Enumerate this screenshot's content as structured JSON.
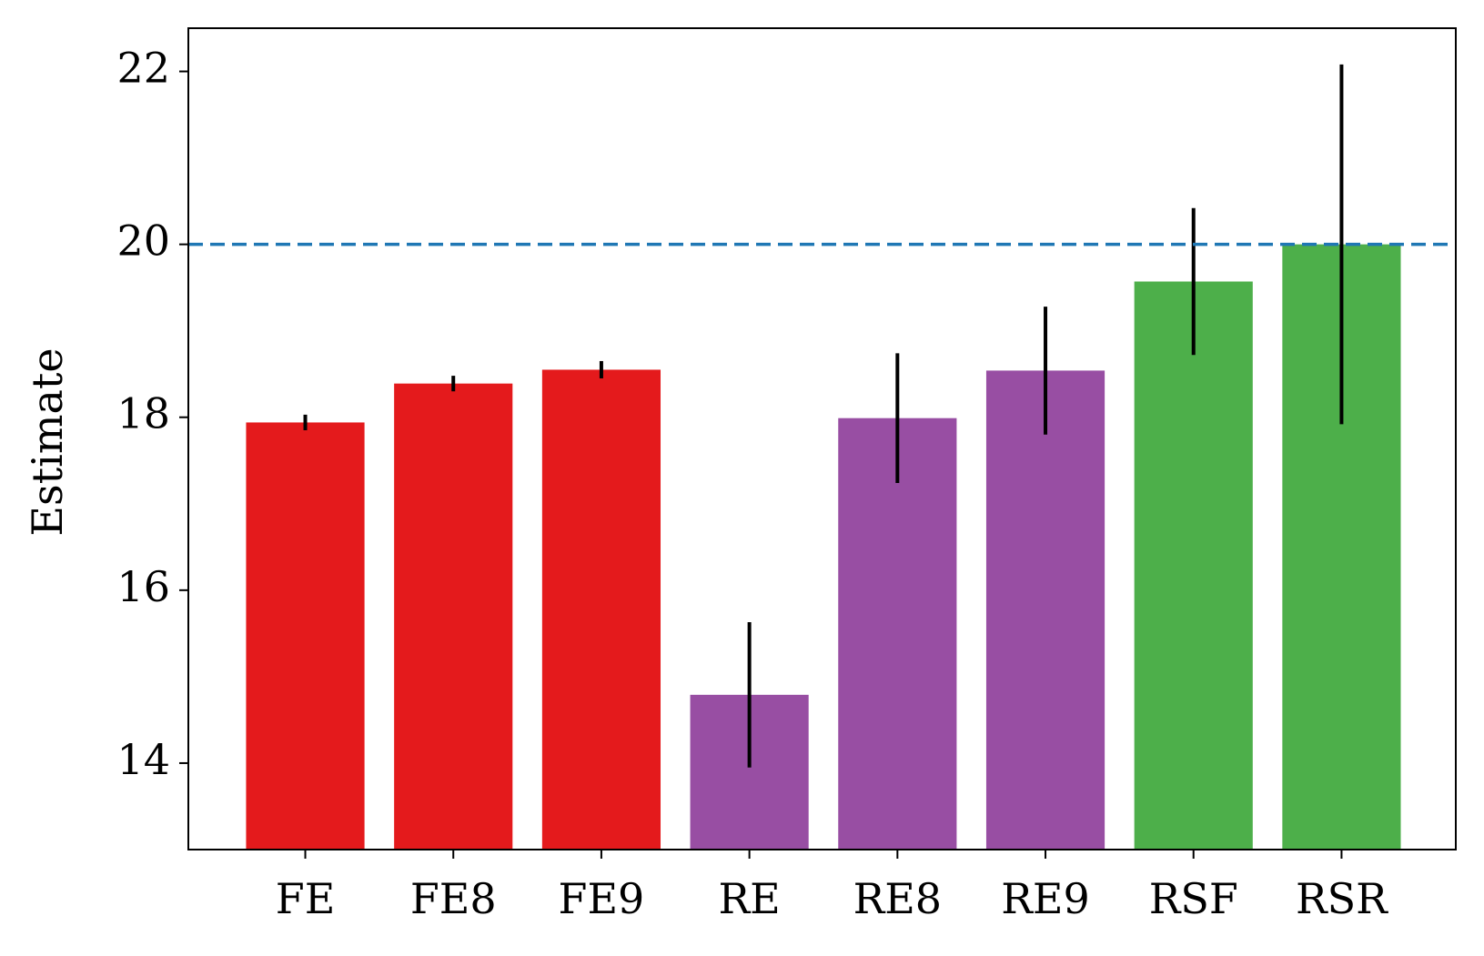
{
  "chart_data": {
    "type": "bar",
    "y_label": "Estimate",
    "categories": [
      "FE",
      "FE8",
      "FE9",
      "RE",
      "RE8",
      "RE9",
      "RSF",
      "RSR"
    ],
    "values": [
      17.94,
      18.39,
      18.55,
      14.79,
      17.99,
      18.54,
      19.57,
      20.0
    ],
    "errors": [
      0.09,
      0.09,
      0.1,
      0.84,
      0.75,
      0.74,
      0.85,
      2.08
    ],
    "colors": [
      "#e41a1c",
      "#e41a1c",
      "#e41a1c",
      "#984ea3",
      "#984ea3",
      "#984ea3",
      "#4daf4a",
      "#4daf4a"
    ],
    "ylim": [
      13,
      22.5
    ],
    "yticks": [
      14,
      16,
      18,
      20,
      22
    ],
    "hline": 20,
    "hline_color": "#1f77b4"
  }
}
